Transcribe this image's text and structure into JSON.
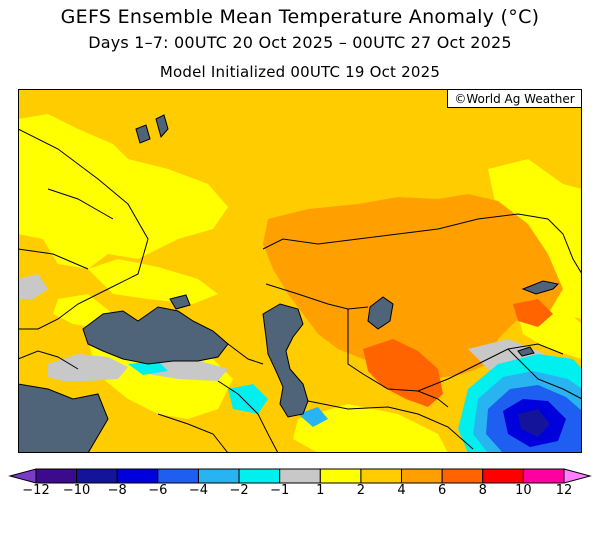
{
  "header": {
    "title": "GEFS Ensemble Mean Temperature Anomaly (°C)",
    "period": "Days 1–7: 00UTC 20 Oct 2025 – 00UTC 27 Oct 2025",
    "initialized": "Model Initialized 00UTC 19 Oct 2025"
  },
  "credit": "©World Ag Weather",
  "legend": {
    "bins": [
      {
        "from": -14,
        "to": -12,
        "color": "#7a3cc8"
      },
      {
        "from": -12,
        "to": -10,
        "color": "#3c0a8c"
      },
      {
        "from": -10,
        "to": -8,
        "color": "#14149a"
      },
      {
        "from": -8,
        "to": -6,
        "color": "#0000dc"
      },
      {
        "from": -6,
        "to": -4,
        "color": "#1e5ef0"
      },
      {
        "from": -4,
        "to": -2,
        "color": "#28b4f0"
      },
      {
        "from": -2,
        "to": -1,
        "color": "#00f0f0"
      },
      {
        "from": -1,
        "to": 1,
        "color": "#c8c8c8"
      },
      {
        "from": 1,
        "to": 2,
        "color": "#ffff00"
      },
      {
        "from": 2,
        "to": 4,
        "color": "#ffcc00"
      },
      {
        "from": 4,
        "to": 6,
        "color": "#ffa000"
      },
      {
        "from": 6,
        "to": 8,
        "color": "#ff6400"
      },
      {
        "from": 8,
        "to": 10,
        "color": "#ff0000"
      },
      {
        "from": 10,
        "to": 12,
        "color": "#ff00a0"
      },
      {
        "from": 12,
        "to": 14,
        "color": "#ff80ff"
      }
    ],
    "ticks": [
      "−12",
      "−10",
      "−8",
      "−6",
      "−4",
      "−2",
      "−1",
      "1",
      "2",
      "4",
      "6",
      "8",
      "10",
      "12"
    ]
  },
  "map": {
    "water_color": "#4f6478",
    "water_bodies": [
      "Black Sea",
      "Caspian Sea",
      "Aral Sea",
      "Balkhash"
    ],
    "dominant_anomaly": "+2 to +4 °C",
    "cold_region": "Tibetan Plateau (−2 to −8 °C)"
  }
}
